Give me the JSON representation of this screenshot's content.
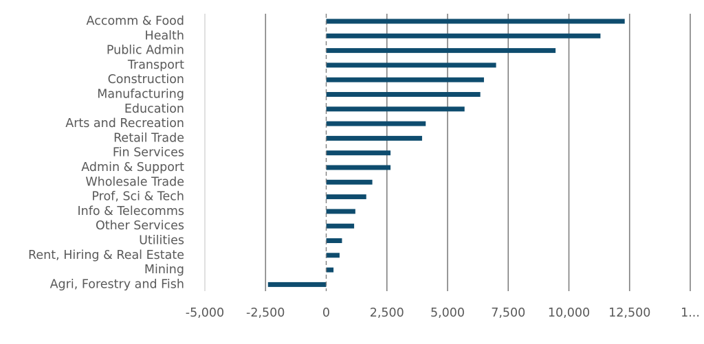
{
  "chart_data": {
    "type": "bar",
    "orientation": "horizontal",
    "categories": [
      "Accomm & Food",
      "Health",
      "Public Admin",
      "Transport",
      "Construction",
      "Manufacturing",
      "Education",
      "Arts and Recreation",
      "Retail Trade",
      "Fin Services",
      "Admin & Support",
      "Wholesale Trade",
      "Prof, Sci & Tech",
      "Info & Telecomms",
      "Other Services",
      "Utilities",
      "Rent, Hiring & Real Estate",
      "Mining",
      "Agri, Forestry and Fish"
    ],
    "values": [
      12300,
      11300,
      9450,
      7000,
      6500,
      6350,
      5700,
      4100,
      3950,
      2650,
      2650,
      1900,
      1650,
      1200,
      1150,
      650,
      550,
      300,
      -2400
    ],
    "xlim": [
      -5000,
      15000
    ],
    "xticks": [
      "-5,000",
      "-2,500",
      "0",
      "2,500",
      "5,000",
      "7,500",
      "10,000",
      "12,500",
      "1..."
    ],
    "xtick_values": [
      -5000,
      -2500,
      0,
      2500,
      5000,
      7500,
      10000,
      12500,
      15000
    ],
    "grid": "vertical",
    "zero_line": "dashed",
    "legend": "none",
    "colors": {
      "bar": "#0e4c6e",
      "grid": "#7f7f7f",
      "text": "#595959"
    }
  }
}
